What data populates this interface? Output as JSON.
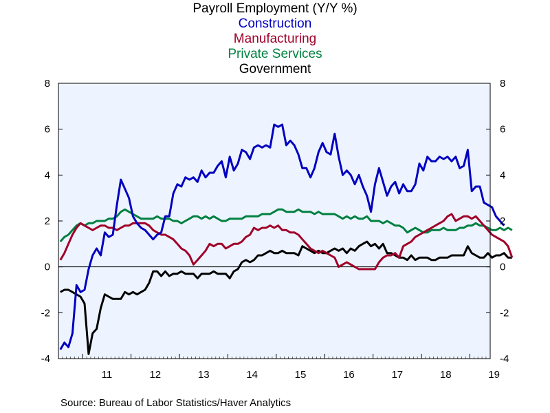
{
  "title": "Payroll Employment (Y/Y %)",
  "subtitles": [
    {
      "text": "Construction",
      "color": "#0000c0"
    },
    {
      "text": "Manufacturing",
      "color": "#a00028"
    },
    {
      "text": "Private Services",
      "color": "#008040"
    },
    {
      "text": "Government",
      "color": "#000000"
    }
  ],
  "source": "Source:  Bureau of Labor Statistics/Haver Analytics",
  "chart_data": {
    "type": "line",
    "xlim": [
      2010.5,
      2019.42
    ],
    "ylim": [
      -4,
      8
    ],
    "yticks": [
      -4,
      -2,
      0,
      2,
      4,
      6,
      8
    ],
    "xtick_labels": [
      "11",
      "12",
      "13",
      "14",
      "15",
      "16",
      "17",
      "18",
      "19"
    ],
    "x_start": 2010.54,
    "x_step": 0.08333,
    "zero_line": true,
    "background": "#eef4ff",
    "series": [
      {
        "name": "Construction",
        "color": "#0000c0",
        "values": [
          -3.6,
          -3.3,
          -3.5,
          -2.9,
          -0.8,
          -1.1,
          -1.0,
          -0.1,
          0.5,
          0.8,
          0.5,
          1.5,
          1.3,
          1.4,
          2.7,
          3.8,
          3.4,
          3.0,
          2.2,
          1.9,
          1.7,
          1.6,
          1.4,
          1.2,
          1.4,
          1.5,
          2.2,
          2.2,
          3.2,
          3.6,
          3.5,
          3.9,
          3.8,
          3.9,
          3.7,
          4.2,
          3.9,
          4.1,
          4.1,
          4.4,
          4.6,
          3.9,
          4.8,
          4.2,
          4.5,
          5.1,
          5.0,
          4.7,
          5.2,
          5.3,
          5.2,
          5.3,
          5.2,
          6.2,
          6.1,
          6.2,
          5.3,
          5.5,
          5.3,
          4.9,
          4.3,
          4.3,
          3.9,
          4.3,
          5.0,
          5.4,
          5.0,
          4.9,
          5.8,
          4.8,
          4.0,
          4.2,
          4.0,
          3.6,
          4.0,
          3.5,
          3.1,
          2.4,
          3.6,
          4.3,
          3.7,
          3.1,
          3.5,
          3.7,
          3.2,
          3.6,
          3.3,
          3.3,
          3.6,
          4.5,
          4.2,
          4.8,
          4.6,
          4.6,
          4.8,
          4.7,
          4.8,
          4.6,
          4.8,
          4.3,
          4.4,
          5.1,
          3.3,
          3.5,
          3.5,
          2.8,
          2.7,
          2.6,
          2.2,
          2.0,
          1.8
        ]
      },
      {
        "name": "Manufacturing",
        "color": "#a00028",
        "values": [
          0.3,
          0.6,
          1.0,
          1.4,
          1.7,
          1.9,
          1.8,
          1.7,
          1.6,
          1.7,
          1.8,
          1.8,
          1.7,
          1.7,
          1.6,
          1.7,
          1.8,
          1.8,
          1.9,
          1.9,
          1.9,
          1.9,
          1.8,
          1.6,
          1.5,
          1.4,
          1.4,
          1.3,
          1.2,
          1.0,
          0.8,
          0.7,
          0.5,
          0.1,
          0.3,
          0.5,
          0.7,
          1.0,
          0.9,
          1.0,
          1.0,
          0.8,
          0.9,
          1.0,
          1.0,
          1.1,
          1.3,
          1.4,
          1.7,
          1.6,
          1.7,
          1.7,
          1.8,
          1.7,
          1.8,
          1.6,
          1.6,
          1.5,
          1.5,
          1.4,
          1.2,
          1.0,
          0.8,
          0.7,
          0.6,
          0.7,
          0.6,
          0.5,
          0.4,
          0.0,
          0.1,
          0.2,
          0.1,
          0.0,
          -0.1,
          -0.1,
          -0.1,
          -0.1,
          -0.1,
          0.2,
          0.4,
          0.5,
          0.5,
          0.6,
          0.4,
          0.9,
          1.0,
          1.1,
          1.3,
          1.4,
          1.5,
          1.6,
          1.7,
          1.8,
          1.9,
          2.0,
          2.2,
          2.3,
          2.0,
          2.1,
          2.2,
          2.2,
          2.1,
          2.2,
          2.0,
          1.8,
          1.6,
          1.4,
          1.3,
          1.2,
          1.1,
          0.9,
          0.4
        ]
      },
      {
        "name": "Private Services",
        "color": "#008040",
        "values": [
          1.1,
          1.3,
          1.4,
          1.6,
          1.8,
          1.9,
          1.8,
          1.9,
          1.9,
          2.0,
          2.0,
          2.0,
          2.1,
          2.1,
          2.2,
          2.4,
          2.5,
          2.4,
          2.3,
          2.2,
          2.1,
          2.1,
          2.1,
          2.1,
          2.2,
          2.1,
          2.1,
          2.1,
          2.0,
          2.0,
          1.9,
          2.0,
          2.1,
          2.2,
          2.2,
          2.1,
          2.2,
          2.1,
          2.2,
          2.1,
          2.0,
          2.0,
          2.1,
          2.1,
          2.1,
          2.1,
          2.2,
          2.2,
          2.2,
          2.2,
          2.3,
          2.3,
          2.3,
          2.4,
          2.5,
          2.5,
          2.4,
          2.4,
          2.4,
          2.5,
          2.4,
          2.4,
          2.4,
          2.3,
          2.4,
          2.3,
          2.3,
          2.3,
          2.3,
          2.2,
          2.1,
          2.2,
          2.1,
          2.2,
          2.1,
          2.1,
          2.2,
          2.0,
          2.0,
          2.0,
          1.9,
          2.0,
          1.9,
          1.8,
          1.8,
          1.7,
          1.5,
          1.6,
          1.7,
          1.6,
          1.5,
          1.5,
          1.6,
          1.6,
          1.6,
          1.7,
          1.6,
          1.6,
          1.6,
          1.7,
          1.7,
          1.8,
          1.8,
          1.9,
          1.8,
          1.8,
          1.7,
          1.6,
          1.6,
          1.7,
          1.6,
          1.7,
          1.6
        ]
      },
      {
        "name": "Government",
        "color": "#000000",
        "values": [
          -1.1,
          -1.0,
          -1.0,
          -1.1,
          -1.2,
          -1.3,
          -1.6,
          -3.8,
          -2.9,
          -2.7,
          -1.8,
          -1.2,
          -1.3,
          -1.4,
          -1.4,
          -1.4,
          -1.1,
          -1.2,
          -1.1,
          -1.2,
          -1.1,
          -1.0,
          -0.7,
          -0.2,
          -0.2,
          -0.4,
          -0.2,
          -0.4,
          -0.3,
          -0.3,
          -0.2,
          -0.3,
          -0.3,
          -0.3,
          -0.5,
          -0.3,
          -0.3,
          -0.3,
          -0.2,
          -0.3,
          -0.3,
          -0.3,
          -0.5,
          -0.2,
          -0.1,
          0.2,
          0.3,
          0.2,
          0.3,
          0.5,
          0.5,
          0.6,
          0.7,
          0.6,
          0.6,
          0.7,
          0.6,
          0.6,
          0.6,
          0.5,
          0.9,
          0.8,
          0.7,
          0.6,
          0.7,
          0.6,
          0.6,
          0.7,
          0.8,
          0.7,
          0.8,
          0.6,
          0.8,
          0.7,
          0.9,
          1.0,
          1.1,
          0.9,
          1.0,
          0.8,
          1.0,
          0.6,
          0.6,
          0.5,
          0.4,
          0.4,
          0.3,
          0.5,
          0.3,
          0.4,
          0.4,
          0.4,
          0.3,
          0.3,
          0.4,
          0.4,
          0.4,
          0.5,
          0.5,
          0.5,
          0.5,
          0.9,
          0.6,
          0.5,
          0.4,
          0.4,
          0.6,
          0.4,
          0.5,
          0.5,
          0.6,
          0.4,
          0.4
        ]
      }
    ]
  }
}
